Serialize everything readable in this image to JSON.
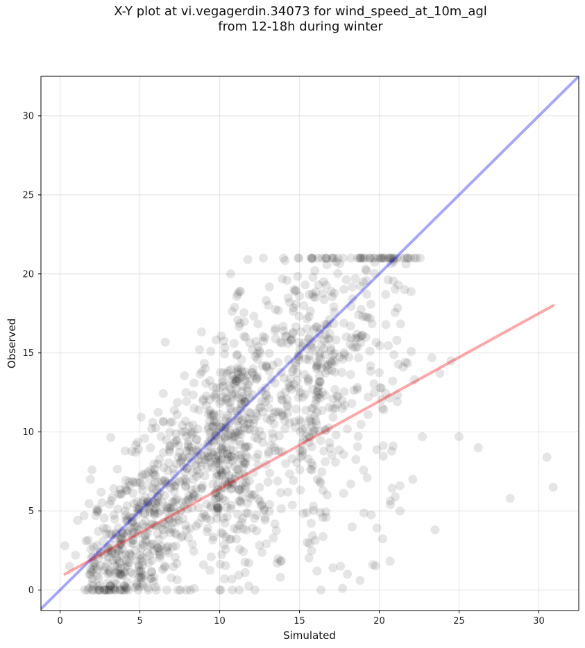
{
  "chart_data": {
    "type": "scatter",
    "title_line1": "X-Y plot at vi.vegagerdin.34073 for wind_speed_at_10m_agl",
    "title_line2": "from 12-18h during winter",
    "xlabel": "Simulated",
    "ylabel": "Observed",
    "xlim": [
      -1.2,
      32.5
    ],
    "ylim": [
      -1.3,
      32.5
    ],
    "xticks": [
      0,
      5,
      10,
      15,
      20,
      25,
      30
    ],
    "yticks": [
      0,
      5,
      10,
      15,
      20,
      25,
      30
    ],
    "grid": true,
    "point_color": "#000000",
    "point_alpha": 0.1,
    "lines": [
      {
        "role": "identity",
        "color": "#0000ff",
        "alpha": 0.35,
        "x": [
          -1.2,
          32.5
        ],
        "y": [
          -1.2,
          32.5
        ]
      },
      {
        "role": "regression",
        "color": "#ff0000",
        "alpha": 0.35,
        "x": [
          0.3,
          30.9
        ],
        "y": [
          1.0,
          18.0
        ]
      }
    ],
    "generated_points": {
      "note_free_count": 1400
    },
    "points": [
      [
        20.3,
        21.0
      ],
      [
        20.9,
        20.9
      ],
      [
        19.2,
        20.2
      ],
      [
        21.2,
        19.3
      ],
      [
        19.0,
        19.5
      ],
      [
        18.5,
        19.7
      ],
      [
        16.2,
        19.3
      ],
      [
        17.0,
        18.9
      ],
      [
        21.6,
        19.0
      ],
      [
        20.4,
        18.7
      ],
      [
        16.0,
        18.5
      ],
      [
        15.0,
        18.6
      ],
      [
        22.0,
        15.1
      ],
      [
        23.3,
        14.7
      ],
      [
        24.5,
        14.5
      ],
      [
        23.8,
        13.7
      ],
      [
        21.5,
        14.1
      ],
      [
        22.2,
        13.3
      ],
      [
        22.7,
        9.7
      ],
      [
        25.0,
        9.7
      ],
      [
        26.2,
        9.0
      ],
      [
        30.5,
        8.4
      ],
      [
        30.9,
        6.5
      ],
      [
        28.2,
        5.8
      ],
      [
        23.5,
        3.8
      ],
      [
        22.1,
        7.0
      ],
      [
        21.3,
        6.6
      ],
      [
        21.0,
        5.9
      ],
      [
        20.7,
        5.4
      ],
      [
        21.3,
        5.0
      ],
      [
        17.7,
        0.1
      ],
      [
        18.8,
        0.6
      ],
      [
        18.0,
        1.0
      ],
      [
        19.6,
        1.6
      ],
      [
        17.1,
        1.4
      ],
      [
        16.1,
        1.2
      ],
      [
        13.8,
        0.8
      ],
      [
        13.6,
        1.7
      ],
      [
        11.6,
        1.1
      ],
      [
        10.3,
        0.7
      ],
      [
        8.4,
        0.1
      ],
      [
        3.9,
        0.0
      ],
      [
        0.3,
        2.8
      ],
      [
        0.6,
        1.5
      ],
      [
        1.1,
        4.4
      ],
      [
        1.5,
        4.7
      ],
      [
        2.0,
        7.6
      ],
      [
        1.9,
        7.0
      ],
      [
        8.4,
        11.5
      ],
      [
        10.0,
        11.8
      ],
      [
        11.8,
        13.0
      ],
      [
        12.4,
        15.4
      ],
      [
        14.0,
        16.4
      ],
      [
        14.6,
        16.3
      ],
      [
        10.9,
        15.6
      ],
      [
        15.6,
        17.3
      ],
      [
        16.6,
        16.8
      ],
      [
        16.9,
        16.2
      ],
      [
        18.2,
        16.7
      ],
      [
        18.7,
        17.4
      ],
      [
        6.9,
        10.6
      ],
      [
        5.8,
        10.6
      ],
      [
        5.3,
        9.6
      ],
      [
        9.8,
        12.8
      ],
      [
        11.6,
        13.8
      ]
    ]
  }
}
